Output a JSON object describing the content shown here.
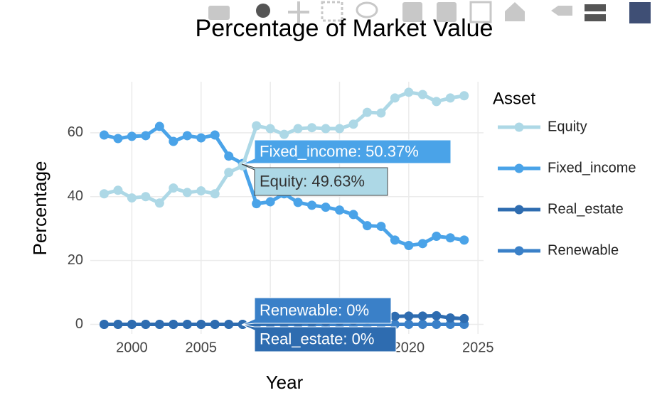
{
  "chart_data": {
    "type": "line",
    "title": "Percentage of Market Value",
    "x_label": "Year",
    "y_label": "Percentage",
    "legend_title": "Asset",
    "x": [
      1998,
      1999,
      2000,
      2001,
      2002,
      2003,
      2004,
      2005,
      2006,
      2007,
      2008,
      2009,
      2010,
      2011,
      2012,
      2013,
      2014,
      2015,
      2016,
      2017,
      2018,
      2019,
      2020,
      2021,
      2022,
      2023,
      2024
    ],
    "series": [
      {
        "name": "Equity",
        "color": "#add8e6",
        "values": [
          40.9,
          42,
          39.6,
          40,
          38,
          42.7,
          41.3,
          41.8,
          40.9,
          47.6,
          49.63,
          62.2,
          61.3,
          59.5,
          61.3,
          61.6,
          61.3,
          61.3,
          62.7,
          66.4,
          66.2,
          70.9,
          72.7,
          72,
          69.8,
          70.9,
          71.6
        ]
      },
      {
        "name": "Fixed_income",
        "color": "#4aa3e8",
        "values": [
          59.3,
          58.2,
          58.9,
          59.1,
          62,
          57.3,
          59.1,
          58.4,
          59.3,
          52.7,
          50.37,
          37.8,
          38.4,
          40.9,
          38.2,
          37.3,
          36.7,
          35.8,
          34.4,
          30.9,
          30.7,
          26.4,
          24.7,
          25.3,
          27.6,
          27.1,
          26.4
        ]
      },
      {
        "name": "Real_estate",
        "color": "#2e6cb0",
        "values": [
          0,
          0,
          0,
          0,
          0,
          0,
          0,
          0,
          0,
          0,
          0,
          0.2,
          0.3,
          0.4,
          0.5,
          0.6,
          0.8,
          1,
          1.2,
          1.5,
          1.8,
          2.5,
          2.6,
          2.6,
          2.7,
          2,
          1.8
        ]
      },
      {
        "name": "Renewable",
        "color": "#3a80c8",
        "values": [
          0,
          0,
          0,
          0,
          0,
          0,
          0,
          0,
          0,
          0,
          0,
          0,
          0,
          0,
          0,
          0,
          0,
          0,
          0,
          0,
          0,
          0,
          0,
          0,
          0,
          0,
          0
        ]
      }
    ],
    "xlim": [
      1997,
      2025.4
    ],
    "xticks": [
      2000,
      2005,
      2010,
      2015,
      2020,
      2025
    ],
    "ylim": [
      -3,
      76
    ],
    "yticks": [
      0,
      20,
      40,
      60
    ],
    "grid": true,
    "hover_labels": [
      {
        "text": "Fixed_income: 50.37%",
        "color": "#4aa3e8",
        "text_color": "#ffffff"
      },
      {
        "text": "Equity: 49.63%",
        "color": "#add8e6",
        "text_color": "#333333"
      },
      {
        "text": "Renewable: 0%",
        "color": "#3a80c8",
        "text_color": "#ffffff"
      },
      {
        "text": "Real_estate: 0%",
        "color": "#2e6cb0",
        "text_color": "#ffffff"
      }
    ]
  }
}
